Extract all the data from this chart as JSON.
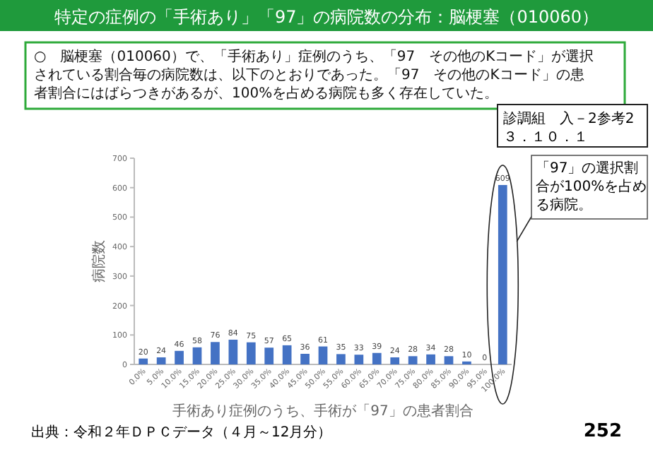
{
  "chart_data": {
    "type": "bar",
    "title": "特定の症例の「手術あり」「97」の病院数の分布：脳梗塞（010060）",
    "xlabel": "手術あり症例のうち、手術が「97」の患者割合",
    "ylabel": "病院数",
    "categories": [
      "0.0%",
      "5.0%",
      "10.0%",
      "15.0%",
      "20.0%",
      "25.0%",
      "30.0%",
      "35.0%",
      "40.0%",
      "45.0%",
      "50.0%",
      "55.0%",
      "60.0%",
      "65.0%",
      "70.0%",
      "75.0%",
      "80.0%",
      "85.0%",
      "90.0%",
      "95.0%",
      "100.0%"
    ],
    "values": [
      20,
      24,
      46,
      58,
      76,
      84,
      75,
      57,
      65,
      36,
      61,
      35,
      33,
      39,
      24,
      28,
      34,
      28,
      10,
      0,
      609
    ],
    "color": "#4472c4",
    "ylim": [
      0,
      700
    ],
    "yticks": [
      0,
      100,
      200,
      300,
      400,
      500,
      600,
      700
    ],
    "grid": false,
    "data_labels": true,
    "annotations": [
      "○　脳梗塞（010060）で、「手術あり」症例のうち、「97　その他のKコード」が選択されている割合毎の病院数は、以下のとおりであった。「97　その他のKコード」の患者割合にはばらつきがあるが、100%を占める病院も多く存在していた。",
      "診調組　入－2参考2",
      "３．１０．１",
      {
        "text": "「97」の選択割合が100%を占める病院。",
        "x": "100.0%",
        "y": 609
      },
      "出典：令和２年ＤＰＣデータ（４月～12月分）",
      "252"
    ]
  }
}
